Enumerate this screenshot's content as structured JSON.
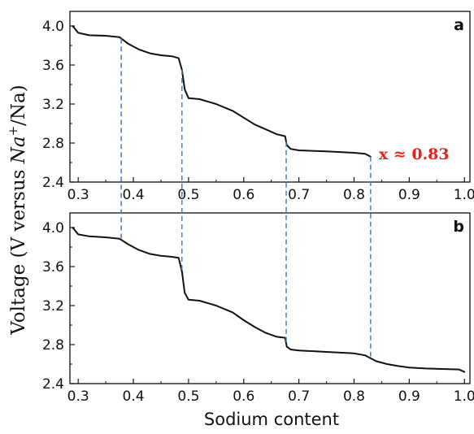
{
  "colors": {
    "curve": "#111111",
    "marker": "#4a86c5",
    "annotation": "#e8231e"
  },
  "ylabel": {
    "prefix": "Voltage (V versus ",
    "ion": "Na",
    "charge": "+",
    "suffix": "/Na)"
  },
  "chart_data": [
    {
      "panel": "a",
      "type": "line",
      "xlabel": "",
      "xlim": [
        0.285,
        1.01
      ],
      "ylim": [
        2.4,
        4.15
      ],
      "xticks": [
        "0.3",
        "0.4",
        "0.5",
        "0.6",
        "0.7",
        "0.8",
        "0.9",
        "1.0"
      ],
      "yticks": [
        "2.4",
        "2.8",
        "3.2",
        "3.6",
        "4.0"
      ],
      "series": [
        {
          "x": [
            0.29,
            0.3,
            0.32,
            0.35,
            0.375,
            0.39,
            0.41,
            0.43,
            0.45,
            0.47,
            0.482,
            0.488,
            0.493,
            0.5,
            0.52,
            0.55,
            0.58,
            0.6,
            0.62,
            0.64,
            0.66,
            0.675,
            0.678,
            0.685,
            0.7,
            0.75,
            0.8,
            0.82,
            0.83
          ],
          "y": [
            4.0,
            3.93,
            3.905,
            3.9,
            3.885,
            3.82,
            3.76,
            3.72,
            3.7,
            3.69,
            3.67,
            3.55,
            3.35,
            3.26,
            3.25,
            3.2,
            3.13,
            3.06,
            2.99,
            2.94,
            2.89,
            2.87,
            2.78,
            2.74,
            2.725,
            2.715,
            2.7,
            2.69,
            2.66
          ]
        }
      ],
      "vlines": [
        0.378,
        0.488,
        0.677,
        0.83
      ],
      "annotation": "x ≈ 0.83"
    },
    {
      "panel": "b",
      "type": "line",
      "xlabel": "Sodium content",
      "xlim": [
        0.285,
        1.01
      ],
      "ylim": [
        2.4,
        4.15
      ],
      "xticks": [
        "0.3",
        "0.4",
        "0.5",
        "0.6",
        "0.7",
        "0.8",
        "0.9",
        "1.0"
      ],
      "yticks": [
        "2.4",
        "2.8",
        "3.2",
        "3.6",
        "4.0"
      ],
      "series": [
        {
          "x": [
            0.29,
            0.3,
            0.32,
            0.35,
            0.375,
            0.39,
            0.41,
            0.43,
            0.45,
            0.47,
            0.482,
            0.488,
            0.493,
            0.5,
            0.52,
            0.55,
            0.58,
            0.6,
            0.62,
            0.64,
            0.66,
            0.675,
            0.678,
            0.685,
            0.7,
            0.75,
            0.8,
            0.82,
            0.84,
            0.86,
            0.88,
            0.9,
            0.93,
            0.96,
            0.99,
            1.0
          ],
          "y": [
            4.0,
            3.93,
            3.91,
            3.9,
            3.885,
            3.83,
            3.77,
            3.73,
            3.71,
            3.7,
            3.69,
            3.55,
            3.33,
            3.26,
            3.25,
            3.2,
            3.13,
            3.05,
            2.98,
            2.92,
            2.88,
            2.87,
            2.78,
            2.75,
            2.74,
            2.725,
            2.71,
            2.69,
            2.63,
            2.6,
            2.58,
            2.565,
            2.555,
            2.55,
            2.545,
            2.52
          ]
        }
      ],
      "vlines": [
        0.378,
        0.488,
        0.677,
        0.83
      ]
    }
  ]
}
